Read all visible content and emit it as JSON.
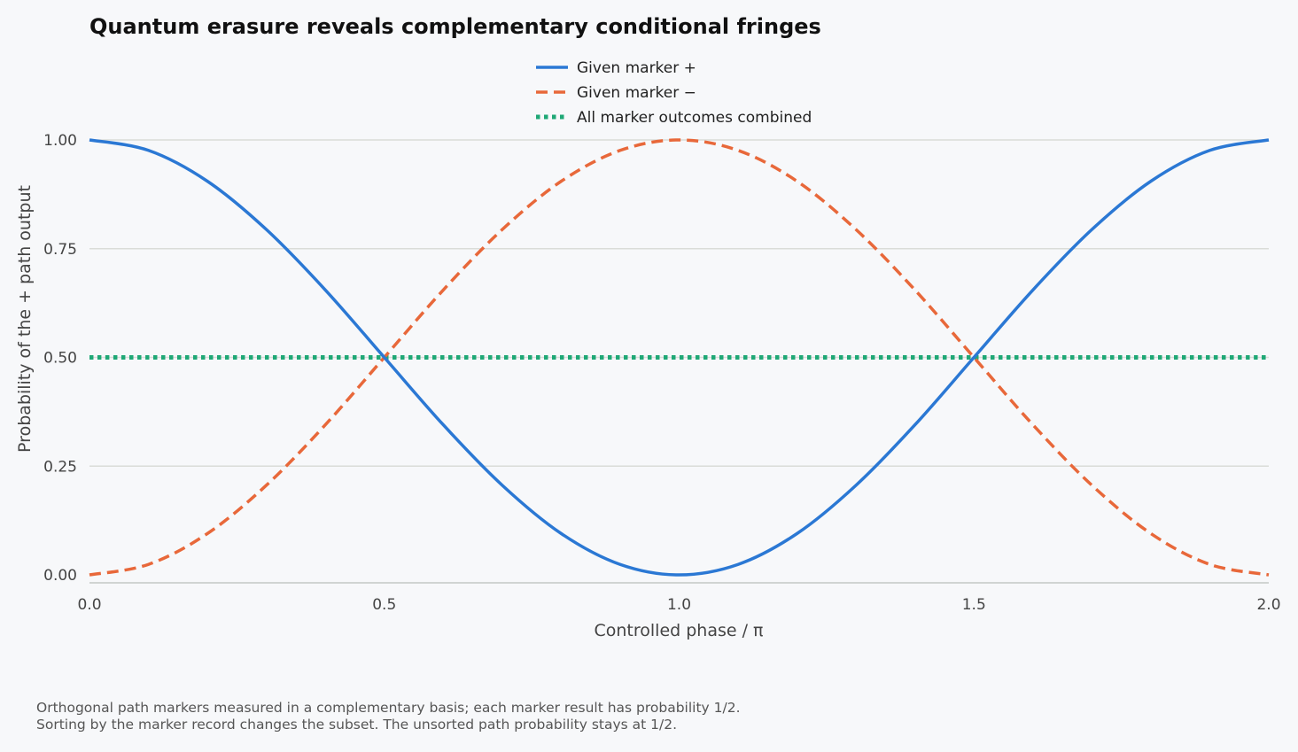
{
  "chart_data": {
    "type": "line",
    "title": "Quantum erasure reveals complementary conditional fringes",
    "xlabel": "Controlled phase / π",
    "ylabel": "Probability of the + path output",
    "xlim": [
      0,
      2
    ],
    "ylim": [
      0,
      1
    ],
    "xticks": [
      "0.0",
      "0.5",
      "1.0",
      "1.5",
      "2.0"
    ],
    "yticks": [
      "0.00",
      "0.25",
      "0.50",
      "0.75",
      "1.00"
    ],
    "grid": "horizontal",
    "legend_position": "top-center",
    "x": [
      0,
      0.1,
      0.2,
      0.3,
      0.4,
      0.5,
      0.6,
      0.7,
      0.8,
      0.9,
      1.0,
      1.1,
      1.2,
      1.3,
      1.4,
      1.5,
      1.6,
      1.7,
      1.8,
      1.9,
      2.0
    ],
    "series": [
      {
        "name": "Given marker +",
        "color": "#2b78d4",
        "style": "solid",
        "values": [
          1.0,
          0.976,
          0.905,
          0.794,
          0.655,
          0.5,
          0.345,
          0.206,
          0.095,
          0.024,
          0.0,
          0.024,
          0.095,
          0.206,
          0.345,
          0.5,
          0.655,
          0.794,
          0.905,
          0.976,
          1.0
        ]
      },
      {
        "name": "Given marker −",
        "color": "#e8683a",
        "style": "dashed",
        "values": [
          0.0,
          0.024,
          0.095,
          0.206,
          0.345,
          0.5,
          0.655,
          0.794,
          0.905,
          0.976,
          1.0,
          0.976,
          0.905,
          0.794,
          0.655,
          0.5,
          0.345,
          0.206,
          0.095,
          0.024,
          0.0
        ]
      },
      {
        "name": "All marker outcomes combined",
        "color": "#1fa876",
        "style": "dotted",
        "values": [
          0.5,
          0.5,
          0.5,
          0.5,
          0.5,
          0.5,
          0.5,
          0.5,
          0.5,
          0.5,
          0.5,
          0.5,
          0.5,
          0.5,
          0.5,
          0.5,
          0.5,
          0.5,
          0.5,
          0.5,
          0.5
        ]
      }
    ]
  },
  "notes": [
    "Orthogonal path markers measured in a complementary basis; each marker result has probability 1/2.",
    "Sorting by the marker record changes the subset. The unsorted path probability stays at 1/2."
  ]
}
